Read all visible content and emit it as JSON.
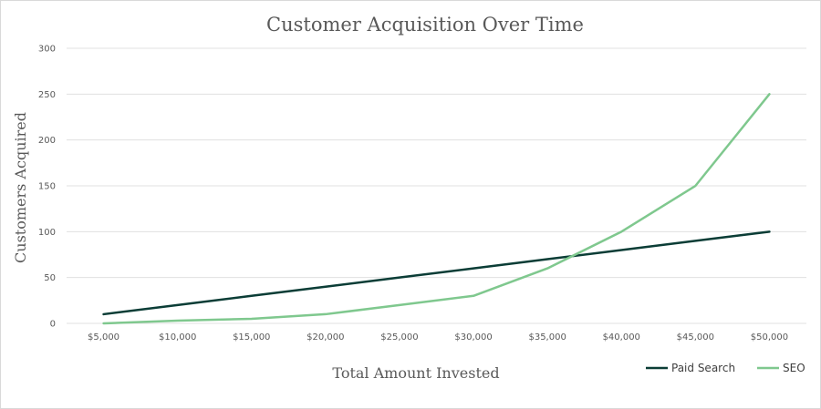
{
  "chart_data": {
    "type": "line",
    "title": "Customer Acquisition Over Time",
    "xlabel": "Total Amount Invested",
    "ylabel": "Customers Acquired",
    "categories": [
      "$5,000",
      "$10,000",
      "$15,000",
      "$20,000",
      "$25,000",
      "$30,000",
      "$35,000",
      "$40,000",
      "$45,000",
      "$50,000"
    ],
    "ylim": [
      0,
      300
    ],
    "yticks": [
      0,
      50,
      100,
      150,
      200,
      250,
      300
    ],
    "grid": true,
    "legend_position": "bottom-right",
    "series": [
      {
        "name": "Paid Search",
        "color": "#0b3d36",
        "values": [
          10,
          20,
          30,
          40,
          50,
          60,
          70,
          80,
          90,
          100
        ]
      },
      {
        "name": "SEO",
        "color": "#7fc88e",
        "values": [
          0,
          3,
          5,
          10,
          20,
          30,
          60,
          100,
          150,
          250
        ]
      }
    ]
  }
}
